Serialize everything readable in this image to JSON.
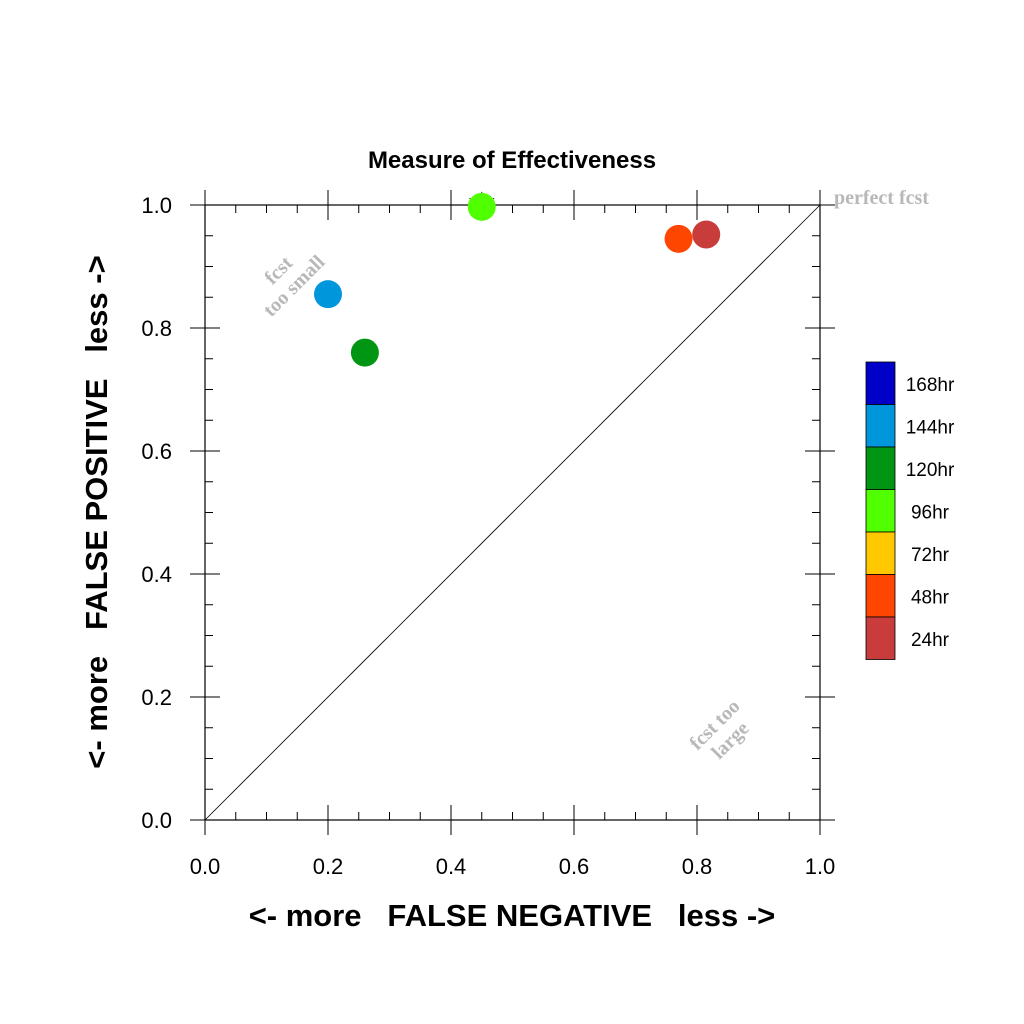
{
  "chart_data": {
    "type": "scatter",
    "title": "Measure of Effectiveness",
    "xlabel": "<- more   FALSE NEGATIVE   less ->",
    "ylabel": "<- more   FALSE POSITIVE   less ->",
    "xlim": [
      0.0,
      1.0
    ],
    "ylim": [
      0.0,
      1.0
    ],
    "xticks": [
      "0.0",
      "0.2",
      "0.4",
      "0.6",
      "0.8",
      "1.0"
    ],
    "yticks": [
      "0.0",
      "0.2",
      "0.4",
      "0.6",
      "0.8",
      "1.0"
    ],
    "grid": false,
    "diagonal_line": true,
    "points": [
      {
        "series": "144hr",
        "x": 0.2,
        "y": 0.855
      },
      {
        "series": "120hr",
        "x": 0.26,
        "y": 0.76
      },
      {
        "series": "96hr",
        "x": 0.45,
        "y": 0.997
      },
      {
        "series": "48hr",
        "x": 0.77,
        "y": 0.945
      },
      {
        "series": "24hr",
        "x": 0.815,
        "y": 0.952
      }
    ],
    "legend": {
      "placement": "right",
      "entries": [
        {
          "label": "168hr",
          "color": "#0000c8"
        },
        {
          "label": "144hr",
          "color": "#0096dc"
        },
        {
          "label": "120hr",
          "color": "#009614"
        },
        {
          "label": "96hr",
          "color": "#50ff00"
        },
        {
          "label": "72hr",
          "color": "#ffc800"
        },
        {
          "label": "48hr",
          "color": "#ff4600"
        },
        {
          "label": "24hr",
          "color": "#c83c3c"
        }
      ]
    },
    "annotations": {
      "perfect": "perfect fcst",
      "small_line1": "fcst",
      "small_line2": "too small",
      "large_line1": "fcst too",
      "large_line2": "large"
    }
  }
}
